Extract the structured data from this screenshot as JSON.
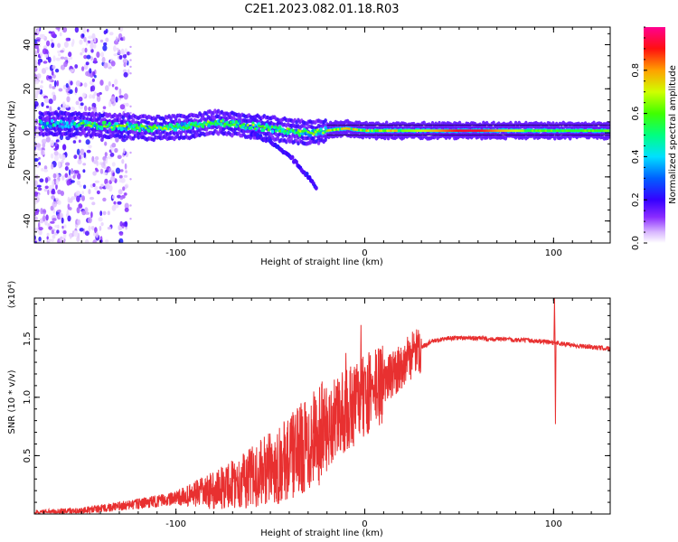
{
  "title": "C2E1.2023.082.01.18.R03",
  "colors": {
    "snr_line": "#e83030",
    "axis": "#000000"
  },
  "chart_data": [
    {
      "type": "heatmap",
      "xlabel": "Height of straight line (km)",
      "ylabel": "Frequency (Hz)",
      "xlim": [
        -175,
        130
      ],
      "ylim": [
        -50,
        48
      ],
      "xticks": [
        -100,
        0,
        100
      ],
      "yticks": [
        -40,
        -20,
        0,
        20,
        40
      ],
      "colorbar": {
        "label": "Normalized spectral amplitude",
        "range": [
          0,
          1
        ],
        "ticks": [
          0.0,
          0.2,
          0.4,
          0.6,
          0.8
        ],
        "colormap": [
          "#ffffff",
          "#c79bff",
          "#6a00ff",
          "#0000ff",
          "#00c8ff",
          "#00ff64",
          "#c8ff00",
          "#ffa000",
          "#ff0000",
          "#ff0096"
        ]
      },
      "ridge": {
        "x": [
          -170,
          -150,
          -130,
          -110,
          -90,
          -80,
          -70,
          -60,
          -50,
          -40,
          -30,
          -20,
          -10,
          0,
          20,
          40,
          60,
          80,
          90,
          100,
          130
        ],
        "y": [
          4,
          4,
          3,
          2,
          3,
          5,
          4,
          3,
          2,
          1,
          0,
          1,
          2,
          1,
          1,
          1,
          1,
          1,
          1,
          1,
          1
        ]
      },
      "branch": {
        "x": [
          -60,
          -50,
          -40,
          -35,
          -30,
          -25
        ],
        "y": [
          0,
          -4,
          -10,
          -15,
          -20,
          -26
        ]
      },
      "noise_region": {
        "x_range": [
          -175,
          -125
        ],
        "y_range": [
          -50,
          48
        ]
      }
    },
    {
      "type": "line",
      "xlabel": "Height of straight line (km)",
      "ylabel": "SNR (10 * v/v)",
      "multiplier": "(x10⁴)",
      "xlim": [
        -175,
        130
      ],
      "ylim": [
        0,
        1.85
      ],
      "xticks": [
        -100,
        0,
        100
      ],
      "yticks": [
        0.5,
        1.0,
        1.5
      ],
      "ytick_labels": [
        "0.5",
        "1.0",
        "1.5"
      ],
      "trend": {
        "x": [
          -175,
          -150,
          -125,
          -100,
          -80,
          -60,
          -45,
          -35,
          -25,
          -15,
          -5,
          5,
          15,
          25,
          35,
          45,
          55,
          70,
          85,
          95,
          100,
          110,
          120,
          130
        ],
        "y": [
          0.01,
          0.03,
          0.08,
          0.14,
          0.22,
          0.34,
          0.46,
          0.58,
          0.72,
          0.85,
          0.98,
          1.1,
          1.22,
          1.38,
          1.48,
          1.51,
          1.51,
          1.5,
          1.49,
          1.48,
          1.47,
          1.45,
          1.43,
          1.42
        ]
      },
      "spikes": [
        {
          "x": -27,
          "y": 1.05
        },
        {
          "x": -10,
          "y": 1.38
        },
        {
          "x": -2,
          "y": 1.62
        },
        {
          "x": 100.5,
          "y": 1.85
        },
        {
          "x": 101,
          "y": 0.77
        }
      ]
    }
  ]
}
